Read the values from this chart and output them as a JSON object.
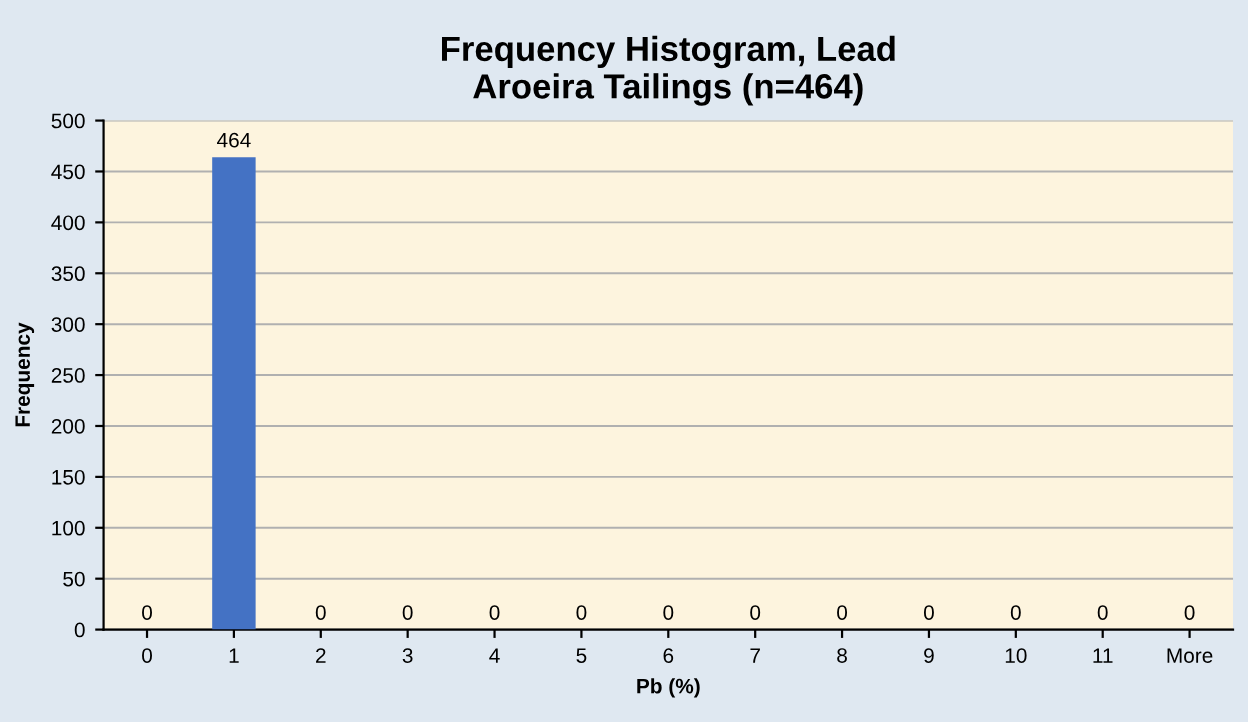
{
  "chart_data": {
    "type": "bar",
    "title": "Frequency Histogram, Lead\nAroeira Tailings (n=464)",
    "xlabel": "Pb (%)",
    "ylabel": "Frequency",
    "categories": [
      "0",
      "1",
      "2",
      "3",
      "4",
      "5",
      "6",
      "7",
      "8",
      "9",
      "10",
      "11",
      "More"
    ],
    "values": [
      0,
      464,
      0,
      0,
      0,
      0,
      0,
      0,
      0,
      0,
      0,
      0,
      0
    ],
    "color": "#4472c4",
    "ylim": [
      0,
      500
    ],
    "yticks": [
      0,
      50,
      100,
      150,
      200,
      250,
      300,
      350,
      400,
      450,
      500
    ],
    "grid": "y",
    "data_labels": true,
    "legend": false
  }
}
